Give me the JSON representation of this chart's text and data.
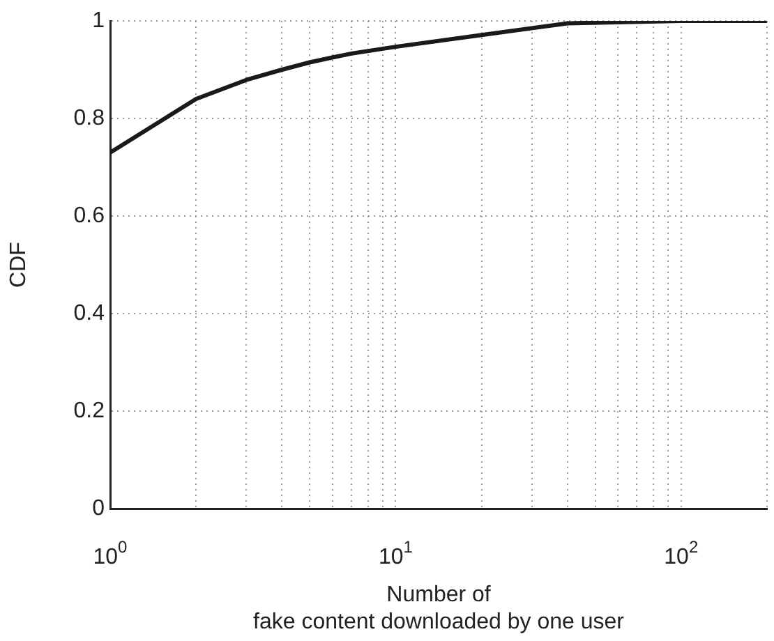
{
  "chart_data": {
    "type": "line",
    "xlabel": "Number of\nfake content downloaded by one user",
    "ylabel": "CDF",
    "x": [
      1,
      2,
      3,
      4,
      5,
      6,
      7,
      10,
      20,
      40,
      100,
      200
    ],
    "series": [
      {
        "color": "#1a1a1a",
        "values": [
          0.73,
          0.84,
          0.879,
          0.9,
          0.915,
          0.925,
          0.933,
          0.947,
          0.971,
          0.995,
          1,
          1
        ]
      }
    ],
    "log": "x",
    "xlim": [
      1,
      200
    ],
    "xticks": [
      {
        "value": 1,
        "label": "10$^{0}$"
      },
      {
        "value": 2,
        "label": null
      },
      {
        "value": 3,
        "label": null
      },
      {
        "value": 4,
        "label": null
      },
      {
        "value": 5,
        "label": null
      },
      {
        "value": 6,
        "label": null
      },
      {
        "value": 7,
        "label": null
      },
      {
        "value": 8,
        "label": null
      },
      {
        "value": 9,
        "label": null
      },
      {
        "value": 10,
        "label": "10$^{1}$"
      },
      {
        "value": 20,
        "label": null
      },
      {
        "value": 30,
        "label": null
      },
      {
        "value": 40,
        "label": null
      },
      {
        "value": 50,
        "label": null
      },
      {
        "value": 60,
        "label": null
      },
      {
        "value": 70,
        "label": null
      },
      {
        "value": 80,
        "label": null
      },
      {
        "value": 90,
        "label": null
      },
      {
        "value": 100,
        "label": "10$^{2}$"
      },
      {
        "value": 200,
        "label": null
      }
    ],
    "ylim": [
      0,
      1
    ],
    "yticks": [
      0,
      0.2,
      0.4,
      0.6,
      0.8,
      1
    ],
    "grid": true,
    "legend": false,
    "marker": "none",
    "line_style": "solid"
  }
}
